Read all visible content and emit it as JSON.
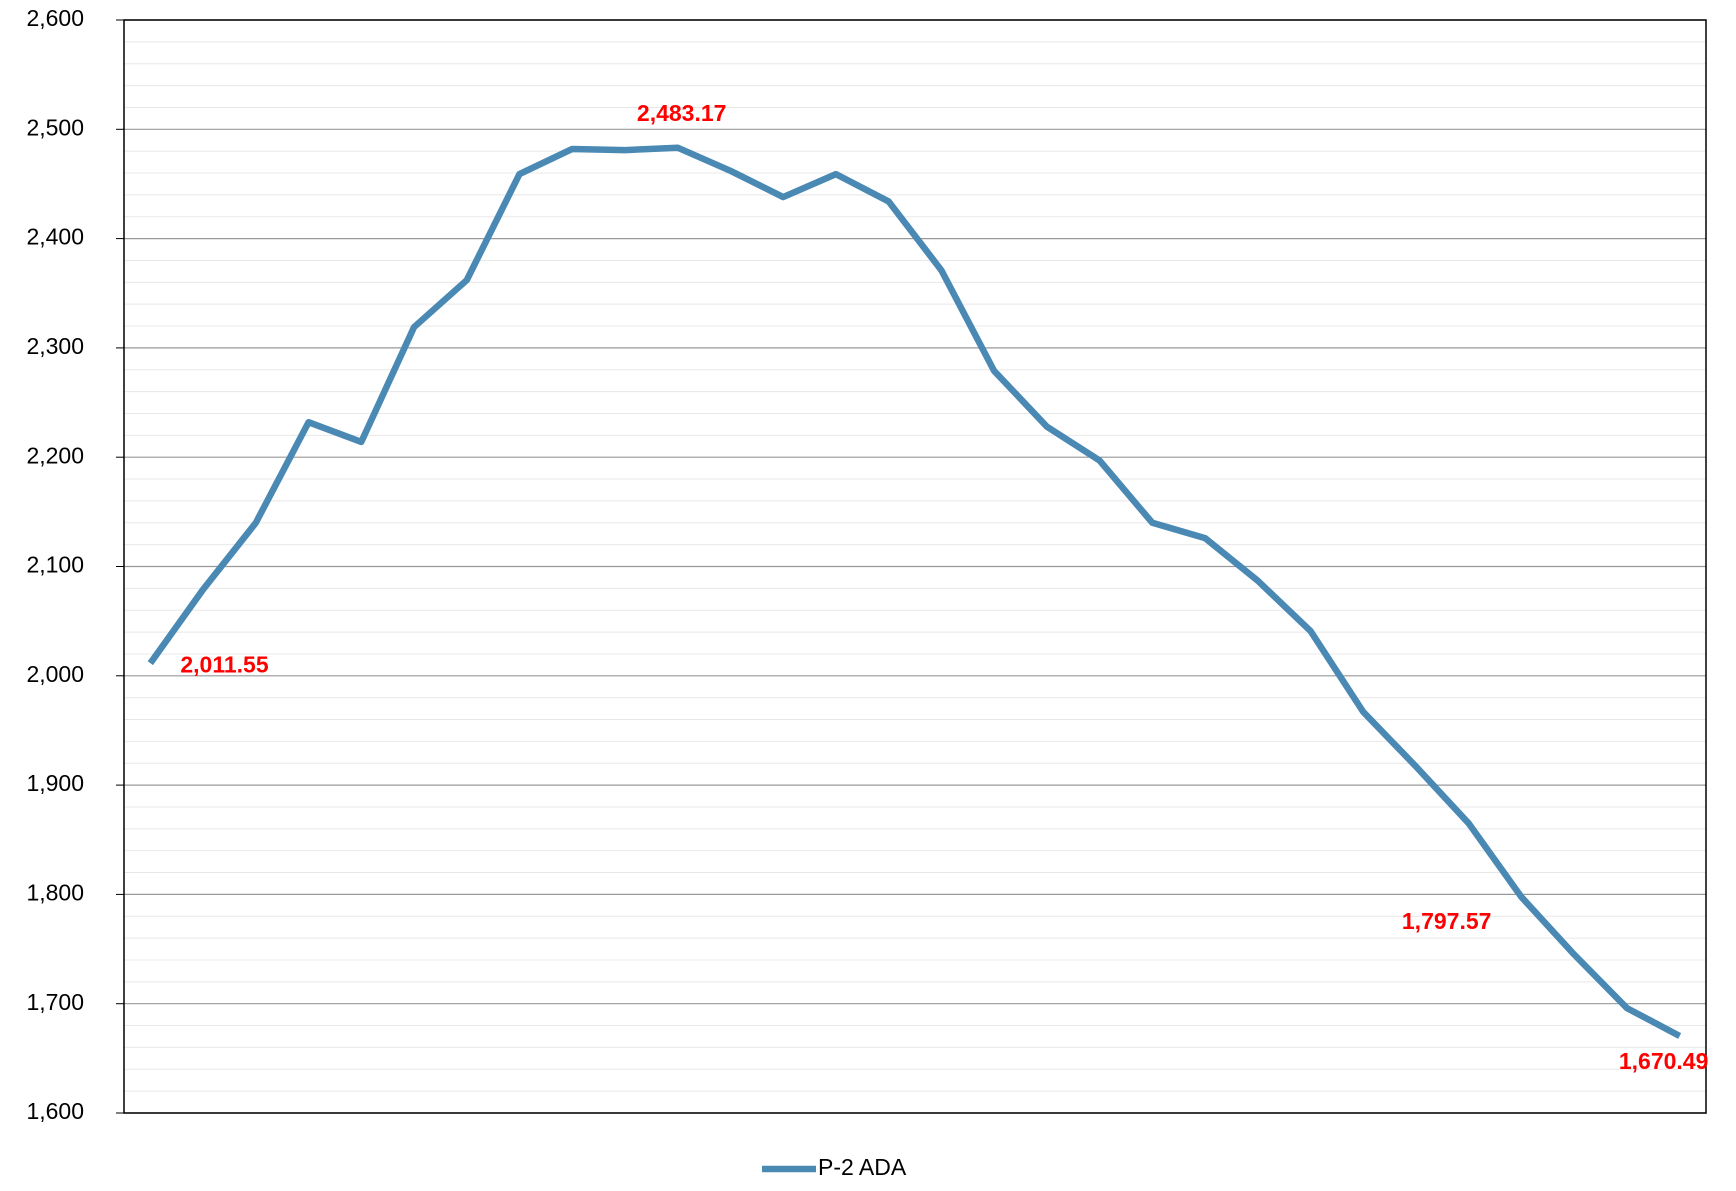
{
  "chart_data": {
    "type": "line",
    "categories": [
      null,
      null,
      null,
      null,
      null,
      null,
      null,
      null,
      null,
      null,
      null,
      null,
      null,
      null,
      null,
      null,
      null,
      null,
      null,
      null,
      null,
      null,
      null,
      null,
      null,
      null,
      null,
      null,
      null,
      null
    ],
    "series": [
      {
        "name": "P-2 ADA",
        "color": "#4a89b4",
        "values": [
          2011.55,
          2079,
          2140,
          2232,
          2214,
          2319,
          2362,
          2459,
          2482,
          2481,
          2483.17,
          2462,
          2438,
          2459,
          2434,
          2371,
          2279,
          2228,
          2197,
          2140,
          2126,
          2087,
          2041,
          1967,
          1917,
          1865,
          1797.57,
          1745,
          1696,
          1670.49
        ],
        "value_labels": [
          "2,011.55",
          null,
          null,
          null,
          null,
          null,
          null,
          null,
          null,
          null,
          "2,483.17",
          null,
          null,
          null,
          null,
          null,
          null,
          null,
          null,
          null,
          null,
          null,
          null,
          null,
          null,
          null,
          "1,797.57",
          null,
          null,
          "1,670.49"
        ],
        "label_color": "#ff0000"
      }
    ],
    "ylim": [
      1600,
      2600
    ],
    "yticks": [
      {
        "value": 1600,
        "label": "1,600"
      },
      {
        "value": 1700,
        "label": "1,700"
      },
      {
        "value": 1800,
        "label": "1,800"
      },
      {
        "value": 1900,
        "label": "1,900"
      },
      {
        "value": 2000,
        "label": "2,000"
      },
      {
        "value": 2100,
        "label": "2,100"
      },
      {
        "value": 2200,
        "label": "2,200"
      },
      {
        "value": 2300,
        "label": "2,300"
      },
      {
        "value": 2400,
        "label": "2,400"
      },
      {
        "value": 2500,
        "label": "2,500"
      },
      {
        "value": 2600,
        "label": "2,600"
      }
    ],
    "grid": true,
    "minor_grid": true,
    "legend": "bottom"
  }
}
